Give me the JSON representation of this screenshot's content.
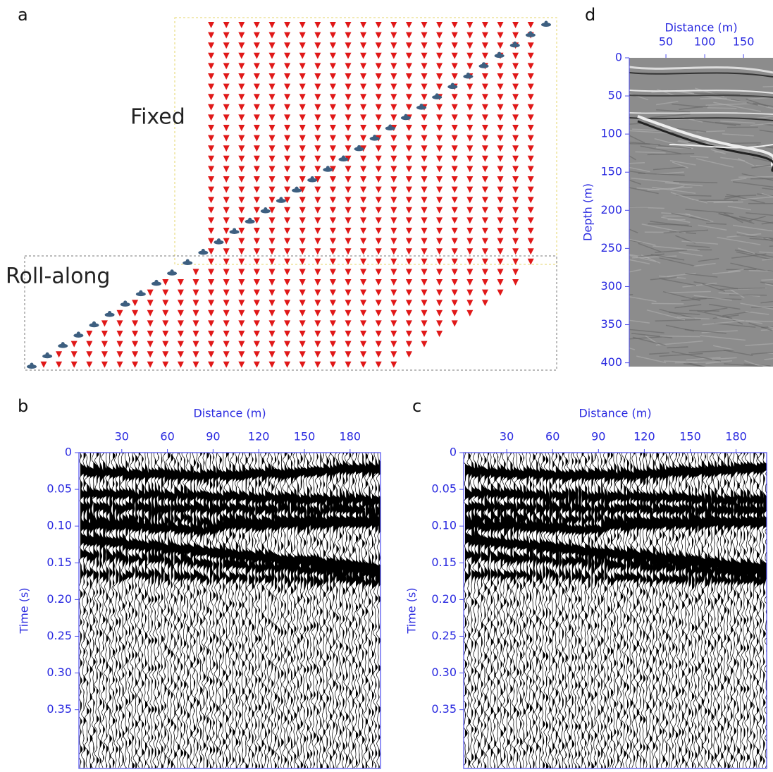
{
  "panels": {
    "a": {
      "label": "a",
      "fixed": "Fixed",
      "roll": "Roll-along"
    },
    "b": {
      "label": "b",
      "xlabel": "Distance (m)",
      "ylabel": "Time (s)",
      "xlim": [
        0,
        200
      ],
      "ylim": [
        0,
        0.43
      ],
      "xticks": [
        30,
        60,
        90,
        120,
        150,
        180
      ],
      "yticks": [
        0,
        0.05,
        {
          "value": 0.1,
          "label": "0.10"
        },
        0.15,
        {
          "value": 0.2,
          "label": "0.20"
        },
        0.25,
        {
          "value": 0.3,
          "label": "0.30"
        },
        0.35
      ]
    },
    "c": {
      "label": "c",
      "xlabel": "Distance (m)",
      "ylabel": "Time (s)",
      "xlim": [
        0,
        200
      ],
      "ylim": [
        0,
        0.43
      ],
      "xticks": [
        30,
        60,
        90,
        120,
        150,
        180
      ],
      "yticks": [
        0,
        0.05,
        {
          "value": 0.1,
          "label": "0.10"
        },
        0.15,
        {
          "value": 0.2,
          "label": "0.20"
        },
        0.25,
        {
          "value": 0.3,
          "label": "0.30"
        },
        0.35
      ]
    },
    "d": {
      "label": "d",
      "xlabel": "Distance (m)",
      "ylabel": "Depth (m)",
      "xlim": [
        0,
        188
      ],
      "ylim": [
        0,
        405
      ],
      "xticks": [
        50,
        100,
        150
      ],
      "yticks": [
        0,
        50,
        100,
        150,
        200,
        250,
        300,
        350,
        400
      ]
    }
  }
}
